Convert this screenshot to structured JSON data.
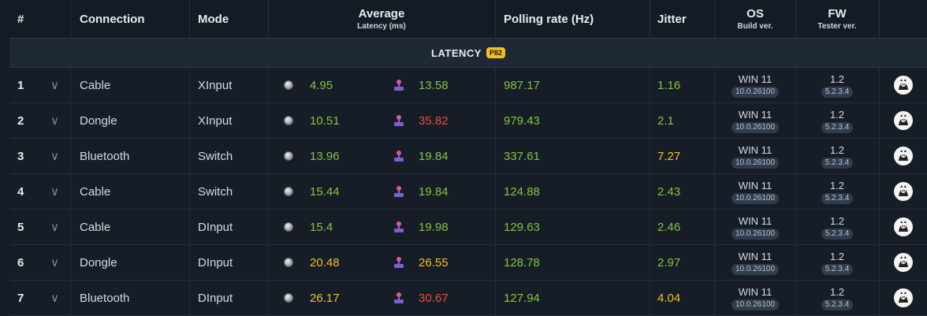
{
  "header": {
    "num": "#",
    "connection": "Connection",
    "mode": "Mode",
    "average": "Average",
    "latency_sub": "Latency (ms)",
    "polling": "Polling rate (Hz)",
    "jitter": "Jitter",
    "os": "OS",
    "os_sub": "Build ver.",
    "fw": "FW",
    "fw_sub": "Tester ver."
  },
  "section": {
    "title": "LATENCY",
    "badge": "P82"
  },
  "colors": {
    "green": "#84c341",
    "yellow": "#f2c021",
    "red": "#ef4a40"
  },
  "icons": {
    "chevron": "chevron-down-icon",
    "button": "button-dot-icon",
    "joystick": "joystick-icon",
    "avatar": "tester-avatar-icon"
  },
  "rows": [
    {
      "num": "1",
      "connection": "Cable",
      "mode": "XInput",
      "lat_a": "4.95",
      "lat_a_c": "green",
      "lat_b": "13.58",
      "lat_b_c": "green",
      "polling": "987.17",
      "jitter": "1.16",
      "jitter_c": "green",
      "os": "WIN 11",
      "os_build": "10.0.26100",
      "fw": "1.2",
      "fw_ver": "5.2.3.4"
    },
    {
      "num": "2",
      "connection": "Dongle",
      "mode": "XInput",
      "lat_a": "10.51",
      "lat_a_c": "green",
      "lat_b": "35.82",
      "lat_b_c": "red",
      "polling": "979.43",
      "jitter": "2.1",
      "jitter_c": "green",
      "os": "WIN 11",
      "os_build": "10.0.26100",
      "fw": "1.2",
      "fw_ver": "5.2.3.4"
    },
    {
      "num": "3",
      "connection": "Bluetooth",
      "mode": "Switch",
      "lat_a": "13.96",
      "lat_a_c": "green",
      "lat_b": "19.84",
      "lat_b_c": "green",
      "polling": "337.61",
      "jitter": "7.27",
      "jitter_c": "yellow",
      "os": "WIN 11",
      "os_build": "10.0.26100",
      "fw": "1.2",
      "fw_ver": "5.2.3.4"
    },
    {
      "num": "4",
      "connection": "Cable",
      "mode": "Switch",
      "lat_a": "15.44",
      "lat_a_c": "green",
      "lat_b": "19.84",
      "lat_b_c": "green",
      "polling": "124.88",
      "jitter": "2.43",
      "jitter_c": "green",
      "os": "WIN 11",
      "os_build": "10.0.26100",
      "fw": "1.2",
      "fw_ver": "5.2.3.4"
    },
    {
      "num": "5",
      "connection": "Cable",
      "mode": "DInput",
      "lat_a": "15.4",
      "lat_a_c": "green",
      "lat_b": "19.98",
      "lat_b_c": "green",
      "polling": "129.63",
      "jitter": "2.46",
      "jitter_c": "green",
      "os": "WIN 11",
      "os_build": "10.0.26100",
      "fw": "1.2",
      "fw_ver": "5.2.3.4"
    },
    {
      "num": "6",
      "connection": "Dongle",
      "mode": "DInput",
      "lat_a": "20.48",
      "lat_a_c": "yellow",
      "lat_b": "26.55",
      "lat_b_c": "yellow",
      "polling": "128.78",
      "jitter": "2.97",
      "jitter_c": "green",
      "os": "WIN 11",
      "os_build": "10.0.26100",
      "fw": "1.2",
      "fw_ver": "5.2.3.4"
    },
    {
      "num": "7",
      "connection": "Bluetooth",
      "mode": "DInput",
      "lat_a": "26.17",
      "lat_a_c": "yellow",
      "lat_b": "30.67",
      "lat_b_c": "red",
      "polling": "127.94",
      "jitter": "4.04",
      "jitter_c": "yellow",
      "os": "WIN 11",
      "os_build": "10.0.26100",
      "fw": "1.2",
      "fw_ver": "5.2.3.4"
    }
  ]
}
